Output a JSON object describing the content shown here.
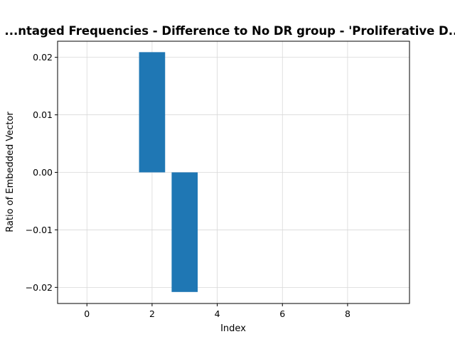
{
  "chart_data": {
    "type": "bar",
    "title": "...ntaged Frequencies - Difference to No DR group - 'Proliferative D...",
    "xlabel": "Index",
    "ylabel": "Ratio of Embedded Vector",
    "x": [
      0,
      1,
      2,
      3,
      4,
      5,
      6,
      7,
      8,
      9
    ],
    "values": [
      0,
      0,
      0.0209,
      -0.0208,
      0,
      0,
      0,
      0,
      0,
      0
    ],
    "xlim": [
      -0.9,
      9.9
    ],
    "ylim": [
      -0.0228,
      0.0228
    ],
    "xticks": [
      "0",
      "2",
      "4",
      "6",
      "8"
    ],
    "yticks": [
      "−0.02",
      "−0.01",
      "0.00",
      "0.01",
      "0.02"
    ],
    "grid": true,
    "bar_color": "#1f77b4",
    "grid_color": "#d9d9d9"
  }
}
